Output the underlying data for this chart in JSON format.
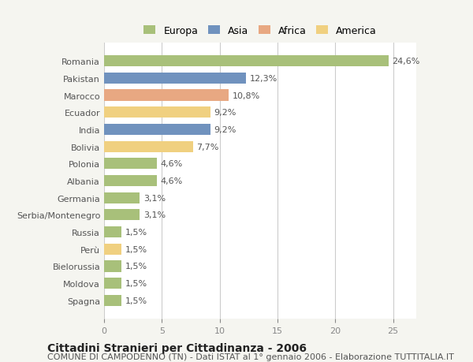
{
  "categories": [
    "Romania",
    "Pakistan",
    "Marocco",
    "Ecuador",
    "India",
    "Bolivia",
    "Polonia",
    "Albania",
    "Germania",
    "Serbia/Montenegro",
    "Russia",
    "Perù",
    "Bielorussia",
    "Moldova",
    "Spagna"
  ],
  "values": [
    24.6,
    12.3,
    10.8,
    9.2,
    9.2,
    7.7,
    4.6,
    4.6,
    3.1,
    3.1,
    1.5,
    1.5,
    1.5,
    1.5,
    1.5
  ],
  "labels": [
    "24,6%",
    "12,3%",
    "10,8%",
    "9,2%",
    "9,2%",
    "7,7%",
    "4,6%",
    "4,6%",
    "3,1%",
    "3,1%",
    "1,5%",
    "1,5%",
    "1,5%",
    "1,5%",
    "1,5%"
  ],
  "colors": [
    "#a8c07a",
    "#7092be",
    "#e8a882",
    "#f0d080",
    "#7092be",
    "#f0d080",
    "#a8c07a",
    "#a8c07a",
    "#a8c07a",
    "#a8c07a",
    "#a8c07a",
    "#f0d080",
    "#a8c07a",
    "#a8c07a",
    "#a8c07a"
  ],
  "legend": [
    {
      "label": "Europa",
      "color": "#a8c07a"
    },
    {
      "label": "Asia",
      "color": "#7092be"
    },
    {
      "label": "Africa",
      "color": "#e8a882"
    },
    {
      "label": "America",
      "color": "#f0d080"
    }
  ],
  "xlim": [
    0,
    27
  ],
  "xticks": [
    0,
    5,
    10,
    15,
    20,
    25
  ],
  "title": "Cittadini Stranieri per Cittadinanza - 2006",
  "subtitle": "COMUNE DI CAMPODENNO (TN) - Dati ISTAT al 1° gennaio 2006 - Elaborazione TUTTITALIA.IT",
  "background_color": "#f5f5f0",
  "plot_bg_color": "#ffffff",
  "grid_color": "#cccccc",
  "label_fontsize": 8,
  "tick_fontsize": 8,
  "title_fontsize": 10,
  "subtitle_fontsize": 8
}
